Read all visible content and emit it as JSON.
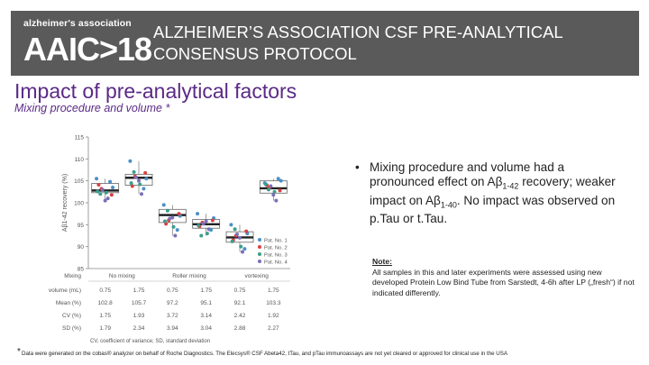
{
  "header": {
    "logo_top": "alzheimer's association",
    "logo_main": "AAIC>18",
    "title": "ALZHEIMER’S ASSOCIATION CSF PRE-ANALYTICAL CONSENSUS PROTOCOL"
  },
  "section_title": "Impact of pre-analytical factors",
  "subtitle": "Mixing procedure and volume *",
  "colors": {
    "header_bg": "#5a5a5a",
    "title_purple": "#5b2a86",
    "median_line": "#222222",
    "pat1": "#4a90c8",
    "pat2": "#d94040",
    "pat3": "#3a9e8c",
    "pat4": "#7a6fb8"
  },
  "chart_data": {
    "type": "box",
    "ylabel": "Aβ1-42 recovery (%)",
    "yticks": [
      85,
      90,
      95,
      100,
      105,
      110,
      115
    ],
    "ylim": [
      85,
      115
    ],
    "legend": [
      "Pat. No. 1",
      "Pat. No. 2",
      "Pat. No. 3",
      "Pat. No. 4"
    ],
    "legend_placement": "lower-right",
    "boxes": [
      {
        "q1": 102.3,
        "median": 102.8,
        "q3": 104.4,
        "points": [
          105.5,
          103.2,
          102.3,
          101.0,
          103.5,
          104.1,
          102.0,
          100.5,
          104.8,
          101.8,
          102.6,
          103.0
        ]
      },
      {
        "q1": 104.0,
        "median": 105.7,
        "q3": 106.5,
        "points": [
          109.5,
          106.0,
          104.2,
          102.0,
          105.5,
          103.8,
          107.0,
          105.0,
          103.2,
          106.8,
          104.5,
          105.8
        ]
      },
      {
        "q1": 95.5,
        "median": 97.2,
        "q3": 98.5,
        "points": [
          99.5,
          96.0,
          94.5,
          92.5,
          97.0,
          95.2,
          98.2,
          96.6,
          93.8,
          97.5,
          95.8,
          96.4
        ]
      },
      {
        "q1": 94.2,
        "median": 95.1,
        "q3": 96.2,
        "points": [
          97.5,
          95.5,
          93.0,
          94.0,
          96.5,
          94.6,
          92.5,
          95.8,
          93.8,
          96.0,
          94.8,
          95.2
        ]
      },
      {
        "q1": 91.0,
        "median": 92.1,
        "q3": 93.4,
        "points": [
          95.0,
          92.5,
          90.0,
          88.8,
          93.0,
          91.5,
          94.0,
          92.0,
          89.5,
          93.5,
          91.2,
          92.8
        ]
      },
      {
        "q1": 102.2,
        "median": 103.3,
        "q3": 105.0,
        "points": [
          104.5,
          103.5,
          102.5,
          100.5,
          105.0,
          104.0,
          103.0,
          101.8,
          105.5,
          102.8,
          104.2,
          103.8
        ]
      }
    ],
    "table": {
      "row_labels": [
        "Mixing",
        "volume (mL)",
        "Mean (%)",
        "CV (%)",
        "SD (%)"
      ],
      "groups": [
        "No mixing",
        "Roller mixing",
        "vortexing"
      ],
      "rows": [
        [
          "0.75",
          "1.75",
          "0.75",
          "1.75",
          "0.75",
          "1.75"
        ],
        [
          "102.8",
          "105.7",
          "97.2",
          "95.1",
          "92.1",
          "103.3"
        ],
        [
          "1.75",
          "1.93",
          "3.72",
          "3.14",
          "2.42",
          "1.92"
        ],
        [
          "1.79",
          "2.34",
          "3.94",
          "3.04",
          "2.88",
          "2.27"
        ]
      ],
      "caption": "CV, coefficient of variance; SD, standard deviation"
    }
  },
  "bullet": {
    "mark": "•",
    "text_1": "Mixing procedure and volume had a pronounced effect on Aβ",
    "sub_1": "1-42",
    "text_2": " recovery; weaker impact on Aβ",
    "sub_2": "1-40",
    "text_3": ". No impact was observed on p.Tau or t.Tau."
  },
  "note": {
    "title": "Note:",
    "text": "All samples in this and later experiments were assessed using new developed Protein Low Bind Tube from Sarstedt, 4-6h after LP („fresh“) if not indicated differently."
  },
  "footnote": {
    "star": "*",
    "text": "Data were generated on the cobas® analyzer on behalf of Roche Diagnostics. The Elecsys® CSF Abeta42, tTau, and pTau immunoassays are not yet cleared or approved for clinical use in the USA"
  }
}
